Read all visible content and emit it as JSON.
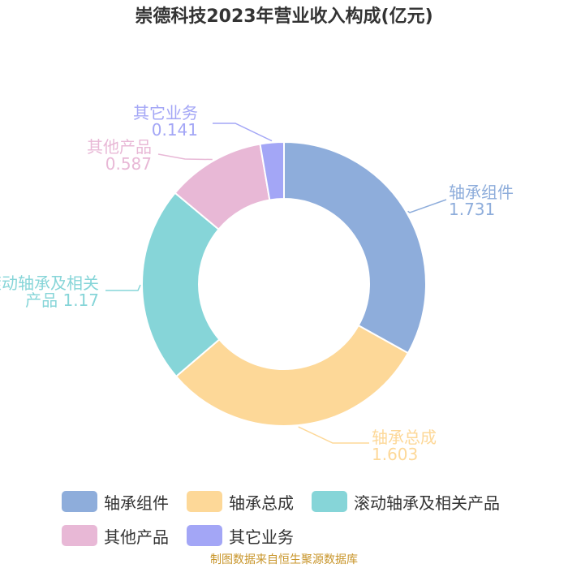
{
  "chart_data": {
    "type": "pie",
    "title": "崇德科技2023年营业收入构成(亿元)",
    "unit": "亿元",
    "slices": [
      {
        "name": "轴承组件",
        "value": 1.731,
        "value_text": "1.731",
        "color": "#8eaddb"
      },
      {
        "name": "轴承总成",
        "value": 1.603,
        "value_text": "1.603",
        "color": "#fdd898"
      },
      {
        "name": "滚动轴承及相关产品",
        "value": 1.17,
        "value_text": "1.17",
        "color": "#86d5d8"
      },
      {
        "name": "其他产品",
        "value": 0.587,
        "value_text": "0.587",
        "color": "#e8b8d6"
      },
      {
        "name": "其它业务",
        "value": 0.141,
        "value_text": "0.141",
        "color": "#a3a6f6"
      }
    ],
    "donut": true,
    "legend_position": "bottom",
    "labels_outside": true
  },
  "source": "制图数据来自恒生聚源数据库"
}
